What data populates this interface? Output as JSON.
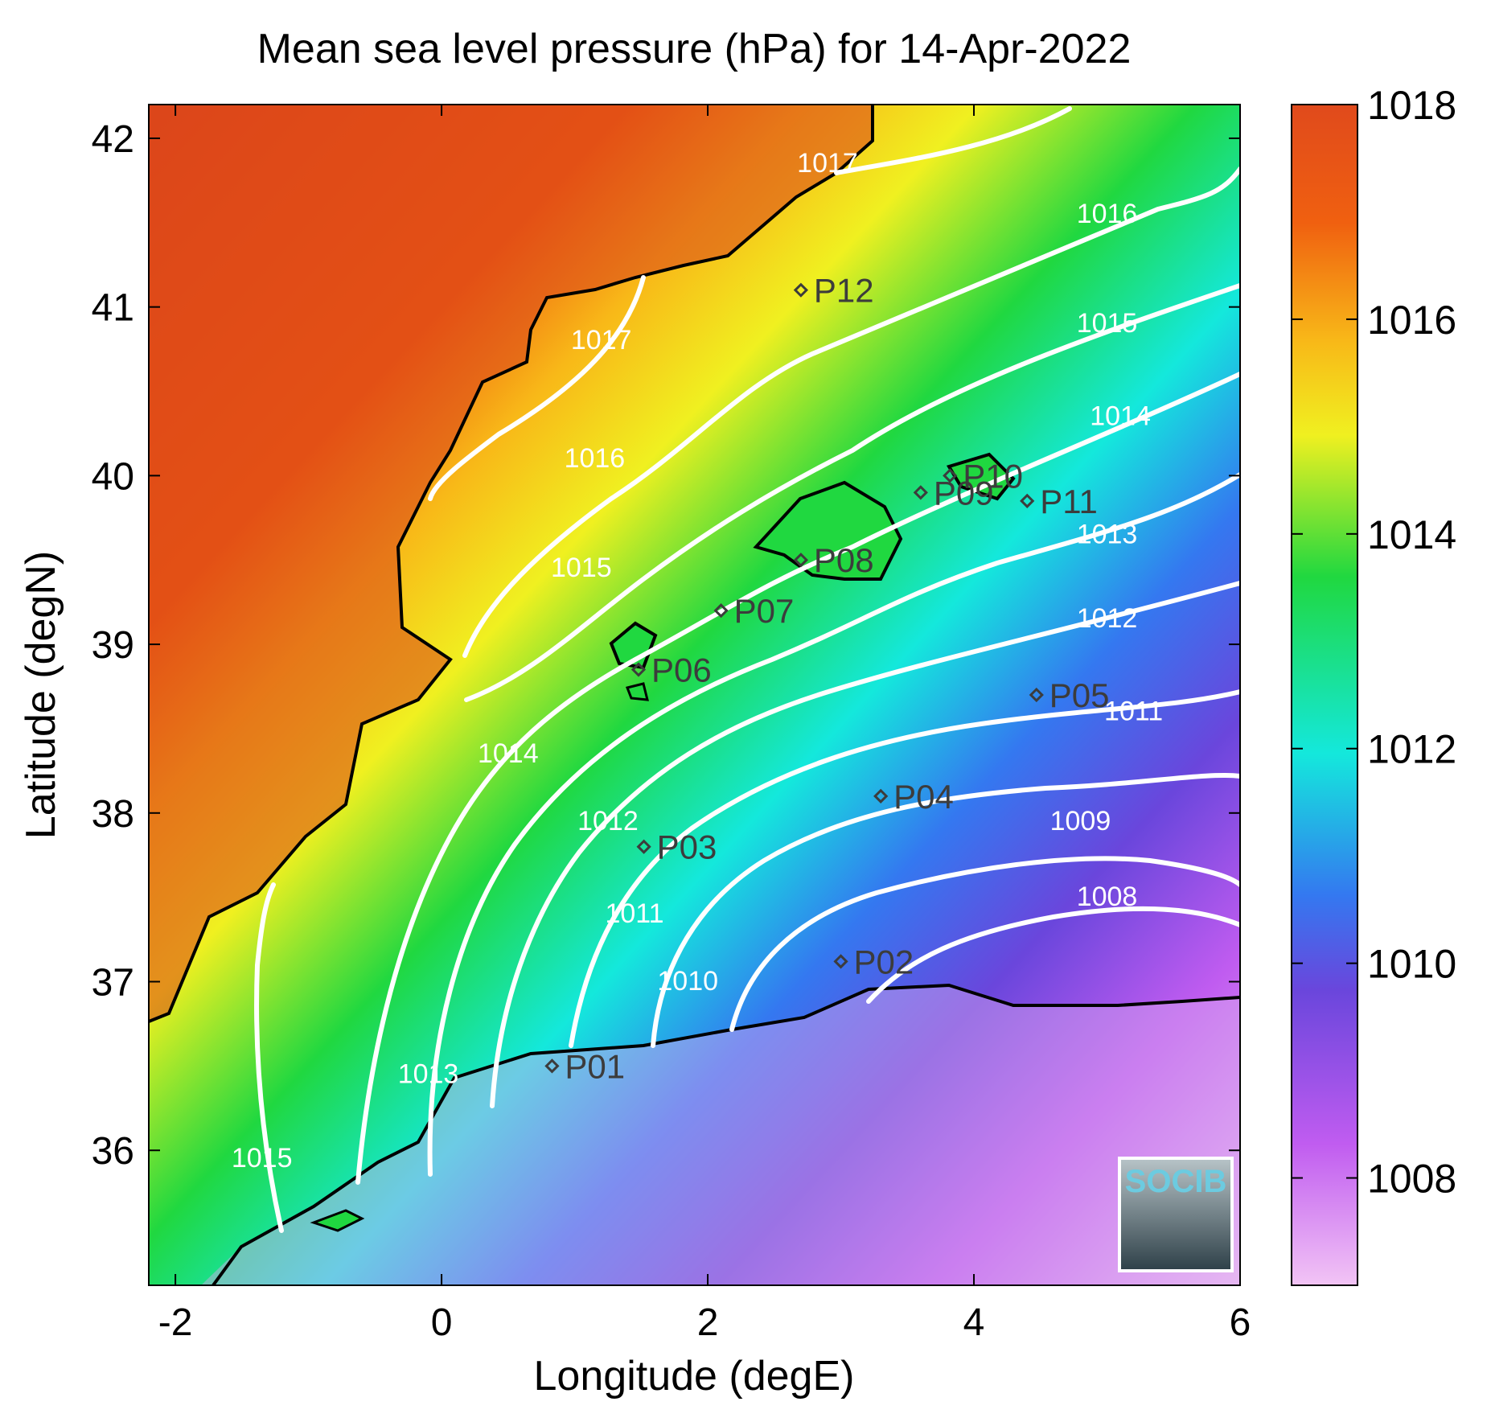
{
  "map": {
    "title": "Mean sea level pressure (hPa) for 14-Apr-2022",
    "xlabel": "Longitude (degE)",
    "ylabel": "Latitude (degN)",
    "lon_range": [
      -2.2,
      6.0
    ],
    "lat_range": [
      35.2,
      42.2
    ],
    "x_ticks": [
      "-2",
      "0",
      "2",
      "4",
      "6"
    ],
    "x_tick_values": [
      -2,
      0,
      2,
      4,
      6
    ],
    "y_ticks": [
      "36",
      "37",
      "38",
      "39",
      "40",
      "41",
      "42"
    ],
    "y_tick_values": [
      36,
      37,
      38,
      39,
      40,
      41,
      42
    ],
    "colorbar": {
      "range": [
        1007,
        1018
      ],
      "ticks": [
        "1008",
        "1010",
        "1012",
        "1014",
        "1016",
        "1018"
      ],
      "tick_values": [
        1008,
        1010,
        1012,
        1014,
        1016,
        1018
      ],
      "colors": [
        "#f2c4f5",
        "#c05cf0",
        "#6a46dc",
        "#3478f0",
        "#14e8dc",
        "#20d840",
        "#f0f020",
        "#f8b818",
        "#f06010",
        "#e04a1c"
      ]
    },
    "contour_labels": [
      {
        "text": "1017",
        "lon": 2.9,
        "lat": 41.8
      },
      {
        "text": "1017",
        "lon": 1.2,
        "lat": 40.75
      },
      {
        "text": "1016",
        "lon": 5.0,
        "lat": 41.5
      },
      {
        "text": "1016",
        "lon": 1.15,
        "lat": 40.05
      },
      {
        "text": "1015",
        "lon": 5.0,
        "lat": 40.85
      },
      {
        "text": "1015",
        "lon": 1.05,
        "lat": 39.4
      },
      {
        "text": "1015",
        "lon": -1.35,
        "lat": 35.9
      },
      {
        "text": "1014",
        "lon": 5.1,
        "lat": 40.3
      },
      {
        "text": "1014",
        "lon": 0.5,
        "lat": 38.3
      },
      {
        "text": "1013",
        "lon": 5.0,
        "lat": 39.6
      },
      {
        "text": "1013",
        "lon": -0.1,
        "lat": 36.4
      },
      {
        "text": "1012",
        "lon": 5.0,
        "lat": 39.1
      },
      {
        "text": "1012",
        "lon": 1.25,
        "lat": 37.9
      },
      {
        "text": "1011",
        "lon": 5.2,
        "lat": 38.55
      },
      {
        "text": "1011",
        "lon": 1.45,
        "lat": 37.35
      },
      {
        "text": "1010",
        "lon": 1.85,
        "lat": 36.95
      },
      {
        "text": "1009",
        "lon": 4.8,
        "lat": 37.9
      },
      {
        "text": "1008",
        "lon": 5.0,
        "lat": 37.45
      }
    ],
    "stations": [
      {
        "label": "P01",
        "lon": 0.83,
        "lat": 36.5
      },
      {
        "label": "P02",
        "lon": 3.0,
        "lat": 37.12
      },
      {
        "label": "P03",
        "lon": 1.52,
        "lat": 37.8
      },
      {
        "label": "P04",
        "lon": 3.3,
        "lat": 38.1
      },
      {
        "label": "P05",
        "lon": 4.47,
        "lat": 38.7
      },
      {
        "label": "P06",
        "lon": 1.48,
        "lat": 38.85
      },
      {
        "label": "P07",
        "lon": 2.1,
        "lat": 39.2
      },
      {
        "label": "P08",
        "lon": 2.7,
        "lat": 39.5
      },
      {
        "label": "P09",
        "lon": 3.6,
        "lat": 39.9
      },
      {
        "label": "P10",
        "lon": 3.82,
        "lat": 40.0
      },
      {
        "label": "P11",
        "lon": 4.4,
        "lat": 39.85
      },
      {
        "label": "P12",
        "lon": 2.7,
        "lat": 41.1
      }
    ],
    "logo": "SOCIB"
  }
}
